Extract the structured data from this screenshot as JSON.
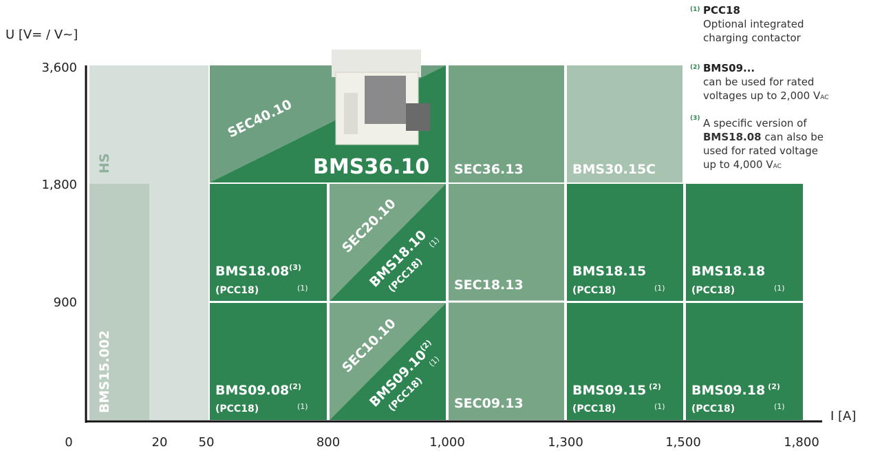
{
  "axes": {
    "y_label": "U [V= / V~]",
    "x_label": "I [A]",
    "y_ticks": [
      "3,600",
      "1,800",
      "900",
      "0"
    ],
    "x_ticks": [
      "20",
      "50",
      "800",
      "1,000",
      "1,300",
      "1,500",
      "1,800"
    ]
  },
  "cells": [
    {
      "name": "HS"
    },
    {
      "name": "BMS15.002"
    },
    {
      "name": "SEC40.10"
    },
    {
      "name": "BMS36.10"
    },
    {
      "name": "SEC36.13"
    },
    {
      "name": "BMS30.15C"
    },
    {
      "name": "BMS18.08",
      "sup": "(3)",
      "sub": "(PCC18)",
      "note": "(1)"
    },
    {
      "name": "SEC20.10"
    },
    {
      "name": "BMS18.10",
      "sub": "(PCC18)",
      "note": "(1)"
    },
    {
      "name": "SEC18.13"
    },
    {
      "name": "BMS18.15",
      "sub": "(PCC18)",
      "note": "(1)"
    },
    {
      "name": "BMS18.18",
      "sub": "(PCC18)",
      "note": "(1)"
    },
    {
      "name": "BMS09.08",
      "sup": "(2)",
      "sub": "(PCC18)",
      "note": "(1)"
    },
    {
      "name": "SEC10.10"
    },
    {
      "name": "BMS09.10",
      "sup": "(2)",
      "sub": "(PCC18)",
      "note": "(1)"
    },
    {
      "name": "SEC09.13"
    },
    {
      "name": "BMS09.15",
      "sup": "(2)",
      "sub": "(PCC18)",
      "note": "(1)"
    },
    {
      "name": "BMS09.18",
      "sup": "(2)",
      "sub": "(PCC18)",
      "note": "(1)"
    }
  ],
  "notes": [
    {
      "marker": "(1)",
      "lines": [
        "PCC18",
        "Optional integrated",
        "charging contactor"
      ]
    },
    {
      "marker": "(2)",
      "lines": [
        "BMS09...",
        "can be used for rated",
        "voltages up to 2,000 V",
        "AC"
      ]
    },
    {
      "marker": "(3)",
      "lines": [
        "A specific version of",
        "BMS18.08",
        " can also be",
        "used for rated voltage",
        "up to 4,000 V",
        "AC"
      ]
    }
  ]
}
